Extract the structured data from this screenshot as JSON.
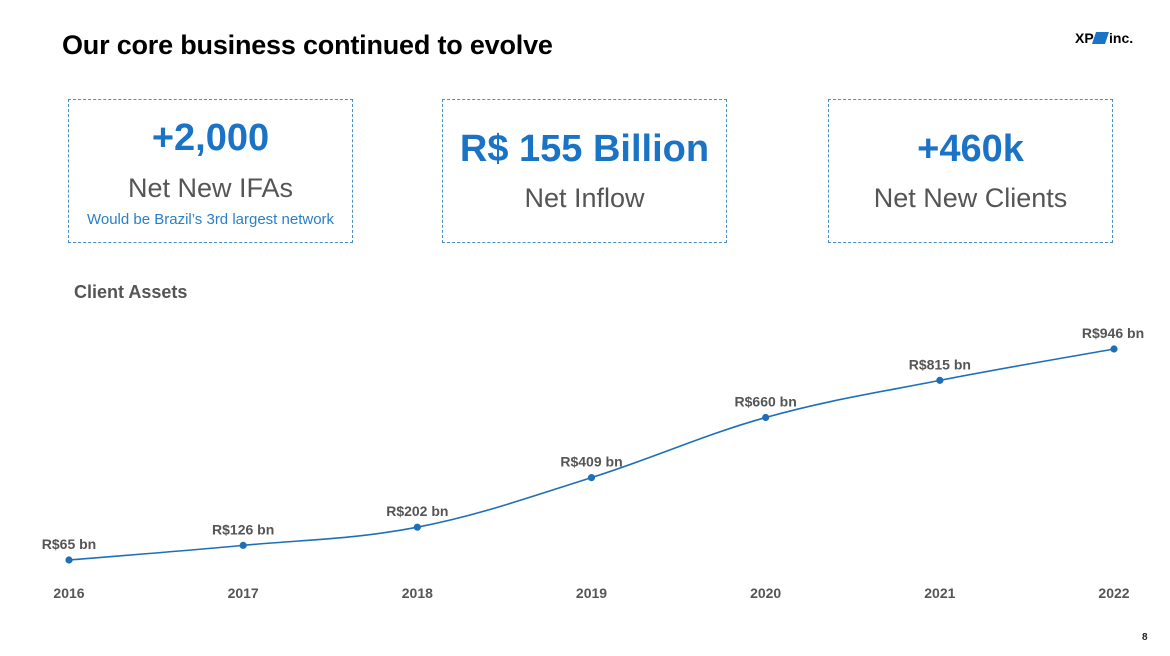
{
  "slide": {
    "title": "Our core business continued to evolve",
    "page_number": "8",
    "logo": "XP inc."
  },
  "kpis": [
    {
      "value": "+2,000",
      "label": "Net New IFAs",
      "note": "Would be Brazil’s 3rd largest network"
    },
    {
      "value": "R$ 155 Billion",
      "label": "Net Inflow"
    },
    {
      "value": "+460k",
      "label": "Net New Clients"
    }
  ],
  "colors": {
    "accent": "#1a73c4",
    "line": "#1e6fb8",
    "text_gray": "#555555"
  },
  "chart_data": {
    "type": "line",
    "title": "Client Assets",
    "x": [
      "2016",
      "2017",
      "2018",
      "2019",
      "2020",
      "2021",
      "2022"
    ],
    "series": [
      {
        "values": [
          65,
          126,
          202,
          409,
          660,
          815,
          946
        ],
        "labels": [
          "R$65 bn",
          "R$126 bn",
          "R$202 bn",
          "R$409 bn",
          "R$660 bn",
          "R$815 bn",
          "R$946 bn"
        ]
      }
    ],
    "grid": false,
    "smooth": true
  }
}
